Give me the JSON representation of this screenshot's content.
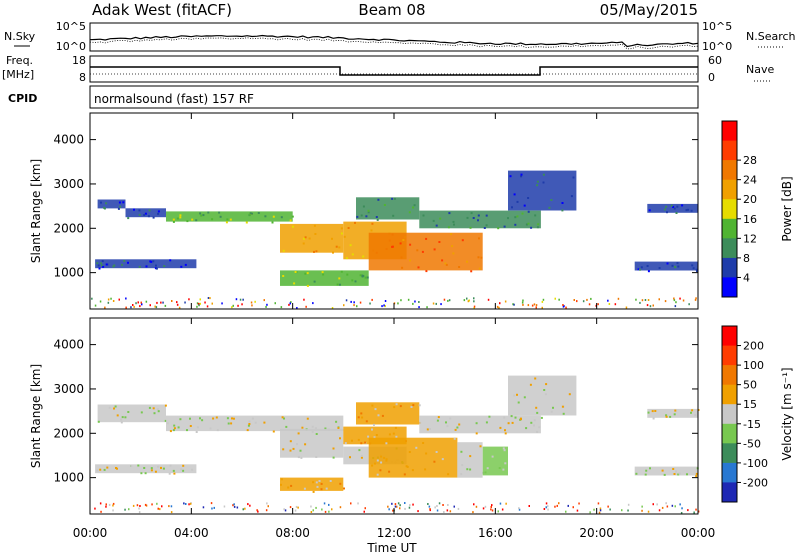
{
  "header": {
    "left_title": "Adak West (fitACF)",
    "center_title": "Beam 08",
    "right_title": "05/May/2015"
  },
  "status_panel": {
    "nsky_label": "N.Sky",
    "nsearch_label": "N.Search",
    "freq_label": "Freq.",
    "freq_unit": "[MHz]",
    "nave_label": "Nave",
    "cpid_label": "CPID",
    "cpid_value": "normalsound (fast) 157 RF",
    "noise_left_ticks": [
      "10^5",
      "10^0"
    ],
    "noise_right_ticks": [
      "10^5",
      "10^0"
    ],
    "freq_ticks": [
      "18",
      "8"
    ],
    "nave_ticks": [
      "60",
      "0"
    ]
  },
  "chart_data": [
    {
      "type": "heatmap",
      "name": "power",
      "xlabel": "Time UT",
      "ylabel": "Slant Range [km]",
      "x_ticks": [
        "00:00",
        "04:00",
        "08:00",
        "12:00",
        "16:00",
        "20:00",
        "00:00"
      ],
      "xlim_hours": [
        0,
        24
      ],
      "ylim_km": [
        180,
        4600
      ],
      "y_ticks": [
        1000,
        2000,
        3000,
        4000
      ],
      "colorbar": {
        "label": "Power [dB]",
        "ticks": [
          "4",
          "8",
          "12",
          "16",
          "20",
          "24",
          "28"
        ],
        "colors": [
          "#0000ff",
          "#1e3caa",
          "#3c8c5a",
          "#50b432",
          "#e6dc00",
          "#f0a000",
          "#f07800",
          "#ff3c00",
          "#ff0000"
        ]
      },
      "bands": [
        {
          "t0": 0.3,
          "t1": 1.4,
          "r0": 2450,
          "r1": 2650,
          "level": 1
        },
        {
          "t0": 1.4,
          "t1": 3.0,
          "r0": 2250,
          "r1": 2450,
          "level": 1
        },
        {
          "t0": 3.0,
          "t1": 8.0,
          "r0": 2150,
          "r1": 2380,
          "level": 3
        },
        {
          "t0": 7.5,
          "t1": 10.0,
          "r0": 1450,
          "r1": 2100,
          "level": 5
        },
        {
          "t0": 10.0,
          "t1": 12.5,
          "r0": 1300,
          "r1": 2150,
          "level": 5
        },
        {
          "t0": 10.5,
          "t1": 13.0,
          "r0": 2200,
          "r1": 2700,
          "level": 2
        },
        {
          "t0": 11.0,
          "t1": 15.5,
          "r0": 1050,
          "r1": 1900,
          "level": 6
        },
        {
          "t0": 13.0,
          "t1": 17.8,
          "r0": 2000,
          "r1": 2400,
          "level": 2
        },
        {
          "t0": 0.2,
          "t1": 4.2,
          "r0": 1100,
          "r1": 1300,
          "level": 1
        },
        {
          "t0": 7.5,
          "t1": 11.0,
          "r0": 700,
          "r1": 1050,
          "level": 3
        },
        {
          "t0": 16.5,
          "t1": 19.2,
          "r0": 2400,
          "r1": 3300,
          "level": 1
        },
        {
          "t0": 21.5,
          "t1": 24.0,
          "r0": 1050,
          "r1": 1250,
          "level": 1
        },
        {
          "t0": 22.0,
          "t1": 24.0,
          "r0": 2350,
          "r1": 2550,
          "level": 1
        }
      ]
    },
    {
      "type": "heatmap",
      "name": "velocity",
      "xlabel": "Time UT",
      "ylabel": "Slant Range [km]",
      "x_ticks": [
        "00:00",
        "04:00",
        "08:00",
        "12:00",
        "16:00",
        "20:00",
        "00:00"
      ],
      "xlim_hours": [
        0,
        24
      ],
      "ylim_km": [
        180,
        4600
      ],
      "y_ticks": [
        1000,
        2000,
        3000,
        4000
      ],
      "colorbar": {
        "label": "Velocity [m s⁻¹]",
        "ticks": [
          "200",
          "100",
          "50",
          "15",
          "-15",
          "-50",
          "-100",
          "-200"
        ],
        "colors": [
          "#1e28b4",
          "#2878d2",
          "#3c8c5a",
          "#78c850",
          "#c8c8c8",
          "#f0a000",
          "#f07800",
          "#ff3c00",
          "#ff0000"
        ]
      },
      "bands": [
        {
          "t0": 0.3,
          "t1": 3.0,
          "r0": 2250,
          "r1": 2650,
          "level": 4
        },
        {
          "t0": 3.0,
          "t1": 10.0,
          "r0": 2050,
          "r1": 2400,
          "level": 4
        },
        {
          "t0": 7.5,
          "t1": 10.0,
          "r0": 1450,
          "r1": 2100,
          "level": 4
        },
        {
          "t0": 0.2,
          "t1": 4.2,
          "r0": 1100,
          "r1": 1300,
          "level": 4
        },
        {
          "t0": 10.0,
          "t1": 12.5,
          "r0": 1300,
          "r1": 1700,
          "level": 4
        },
        {
          "t0": 10.0,
          "t1": 12.5,
          "r0": 1750,
          "r1": 2150,
          "level": 5
        },
        {
          "t0": 10.5,
          "t1": 13.0,
          "r0": 2200,
          "r1": 2700,
          "level": 5
        },
        {
          "t0": 11.0,
          "t1": 14.5,
          "r0": 1000,
          "r1": 1900,
          "level": 5
        },
        {
          "t0": 14.5,
          "t1": 15.5,
          "r0": 1000,
          "r1": 1800,
          "level": 4
        },
        {
          "t0": 15.5,
          "t1": 16.5,
          "r0": 1050,
          "r1": 1700,
          "level": 3
        },
        {
          "t0": 7.5,
          "t1": 10.0,
          "r0": 700,
          "r1": 1000,
          "level": 5
        },
        {
          "t0": 13.0,
          "t1": 17.8,
          "r0": 2000,
          "r1": 2400,
          "level": 4
        },
        {
          "t0": 16.5,
          "t1": 19.2,
          "r0": 2400,
          "r1": 3300,
          "level": 4
        },
        {
          "t0": 21.5,
          "t1": 24.0,
          "r0": 1050,
          "r1": 1250,
          "level": 4
        },
        {
          "t0": 22.0,
          "t1": 24.0,
          "r0": 2350,
          "r1": 2550,
          "level": 4
        }
      ]
    }
  ]
}
